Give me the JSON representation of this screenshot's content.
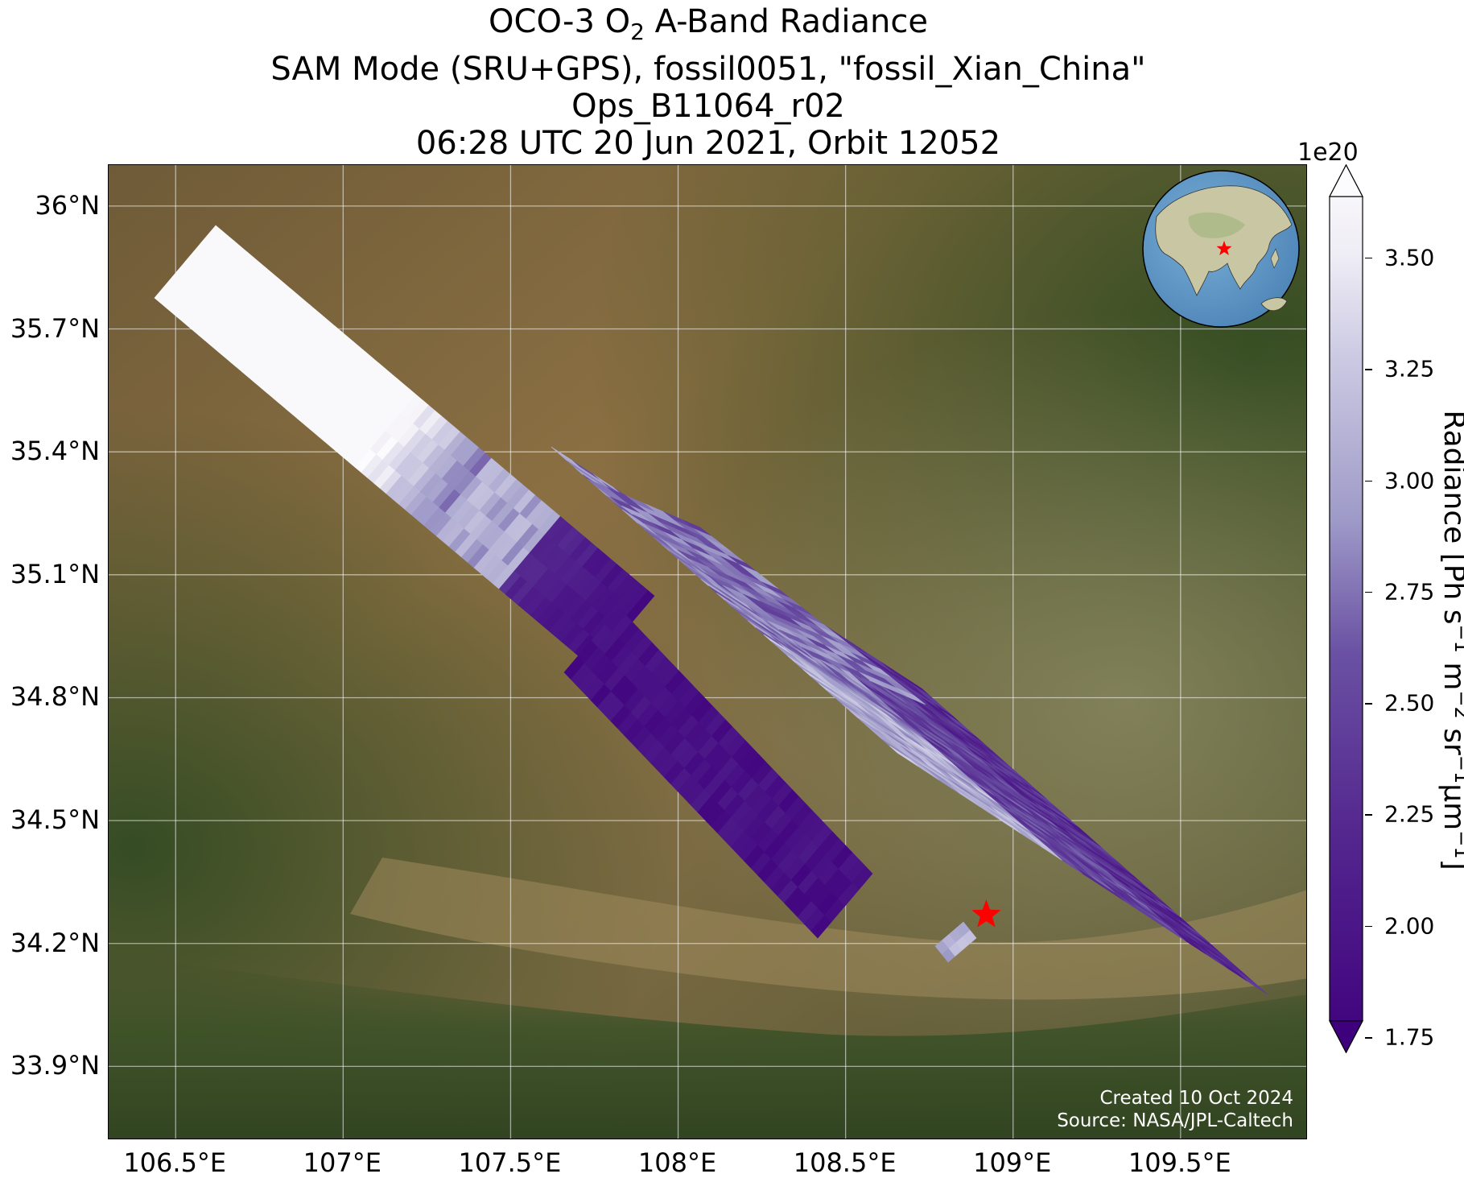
{
  "title": {
    "line1_prefix": "OCO-3 O",
    "line1_sub": "2",
    "line1_suffix": " A-Band Radiance",
    "line2": "SAM Mode (SRU+GPS), fossil0051, \"fossil_Xian_China\"",
    "line3": "Ops_B11064_r02",
    "line4": "06:28 UTC 20 Jun 2021, Orbit 12052"
  },
  "map": {
    "lon_range": [
      106.3,
      109.88
    ],
    "lat_range": [
      33.72,
      36.1
    ],
    "lon_ticks": [
      "106.5°E",
      "107°E",
      "107.5°E",
      "108°E",
      "108.5°E",
      "109°E",
      "109.5°E"
    ],
    "lon_tick_values": [
      106.5,
      107.0,
      107.5,
      108.0,
      108.5,
      109.0,
      109.5
    ],
    "lat_ticks": [
      "36°N",
      "35.7°N",
      "35.4°N",
      "35.1°N",
      "34.8°N",
      "34.5°N",
      "34.2°N",
      "33.9°N"
    ],
    "lat_tick_values": [
      36.0,
      35.7,
      35.4,
      35.1,
      34.8,
      34.5,
      34.2,
      33.9
    ],
    "gridlines": true,
    "target_marker": {
      "lon": 108.92,
      "lat": 34.27,
      "color": "#ff0000",
      "icon": "star-icon"
    },
    "background": "satellite imagery (loess plateau, Wei River valley, Qinling mountains)"
  },
  "colorbar": {
    "label_main": "Radiance [Ph s",
    "exponent": "1e20",
    "ticks": [
      "1.75",
      "2.00",
      "2.25",
      "2.50",
      "2.75",
      "3.00",
      "3.25",
      "3.50"
    ],
    "tick_values": [
      1.75,
      2.0,
      2.25,
      2.5,
      2.75,
      3.0,
      3.25,
      3.5
    ],
    "range": [
      1.6,
      3.63
    ],
    "colormap": "Purples_r",
    "color_low": "#3f007d",
    "color_high": "#fcfbfd"
  },
  "inset_globe": {
    "center_region": "East Asia",
    "marker": "star-icon",
    "ocean_color": "#5b93c4",
    "land_color": "#c9c7a3"
  },
  "footer": {
    "created": "Created 10 Oct 2024",
    "source": "Source: NASA/JPL-Caltech"
  }
}
